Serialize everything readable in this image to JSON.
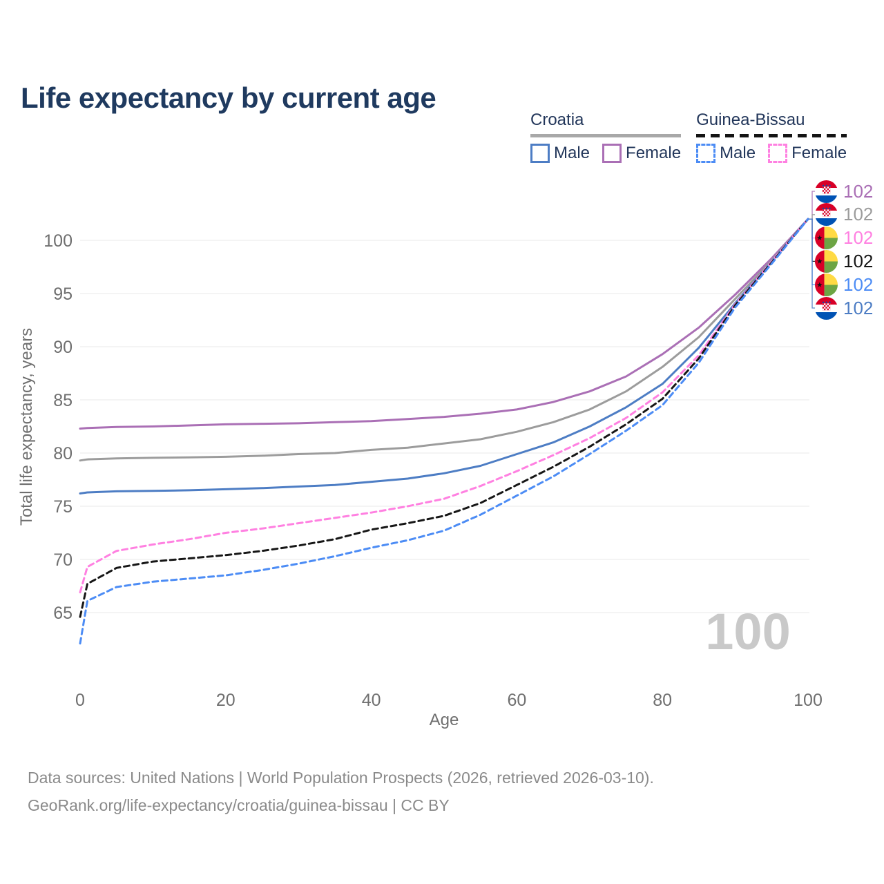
{
  "header": {
    "title": "Life expectancy by current age"
  },
  "legend": {
    "croatia": {
      "label": "Croatia",
      "male_label": "Male",
      "female_label": "Female",
      "male_color": "#4d7dc4",
      "female_color": "#aa6fb5",
      "combined_color": "#9c9c9c",
      "line_style": "solid"
    },
    "guinea_bissau": {
      "label": "Guinea-Bissau",
      "male_label": "Male",
      "female_label": "Female",
      "male_color": "#4c8cf5",
      "female_color": "#ff80e1",
      "combined_color": "#161616",
      "line_style": "dashed"
    }
  },
  "chart_data": {
    "type": "line",
    "title": "Life expectancy by current age",
    "xlabel": "Age",
    "ylabel": "Total life expectancy, years",
    "xlim": [
      0,
      100
    ],
    "ylim": [
      62,
      103
    ],
    "x_ticks": [
      0,
      20,
      40,
      60,
      80,
      100
    ],
    "y_ticks": [
      65,
      70,
      75,
      80,
      85,
      90,
      95,
      100
    ],
    "grid": "horizontal",
    "legend_position": "top-right",
    "x": [
      0,
      1,
      5,
      10,
      15,
      20,
      25,
      30,
      35,
      40,
      45,
      50,
      55,
      60,
      65,
      70,
      75,
      80,
      85,
      90,
      95,
      100
    ],
    "series": [
      {
        "name": "Croatia Female",
        "color": "#aa6fb5",
        "dash": "solid",
        "values": [
          82.3,
          82.35,
          82.45,
          82.5,
          82.6,
          82.7,
          82.75,
          82.8,
          82.9,
          83.0,
          83.2,
          83.4,
          83.7,
          84.1,
          84.8,
          85.8,
          87.2,
          89.3,
          91.8,
          94.9,
          98.3,
          102
        ]
      },
      {
        "name": "Croatia Both sexes",
        "color": "#9c9c9c",
        "dash": "solid",
        "values": [
          79.3,
          79.4,
          79.5,
          79.55,
          79.6,
          79.65,
          79.75,
          79.9,
          80.0,
          80.3,
          80.5,
          80.9,
          81.3,
          82.0,
          82.9,
          84.1,
          85.8,
          88.1,
          90.9,
          94.5,
          98.1,
          102
        ]
      },
      {
        "name": "Croatia Male",
        "color": "#4d7dc4",
        "dash": "solid",
        "values": [
          76.2,
          76.3,
          76.4,
          76.45,
          76.5,
          76.6,
          76.7,
          76.85,
          77.0,
          77.3,
          77.6,
          78.1,
          78.8,
          79.9,
          81.0,
          82.5,
          84.3,
          86.5,
          89.9,
          94.1,
          98.0,
          102
        ]
      },
      {
        "name": "Guinea-Bissau Female",
        "color": "#ff80e1",
        "dash": "dashed",
        "values": [
          66.9,
          69.3,
          70.8,
          71.4,
          71.9,
          72.5,
          72.9,
          73.4,
          73.9,
          74.4,
          75.0,
          75.7,
          76.9,
          78.3,
          79.8,
          81.4,
          83.3,
          85.7,
          89.2,
          94.0,
          98.0,
          102
        ]
      },
      {
        "name": "Guinea-Bissau Both sexes",
        "color": "#161616",
        "dash": "dashed",
        "values": [
          64.6,
          67.7,
          69.2,
          69.8,
          70.1,
          70.4,
          70.8,
          71.3,
          71.9,
          72.8,
          73.4,
          74.1,
          75.3,
          77.0,
          78.7,
          80.6,
          82.7,
          85.1,
          88.9,
          93.9,
          97.9,
          102
        ]
      },
      {
        "name": "Guinea-Bissau Male",
        "color": "#4c8cf5",
        "dash": "dashed",
        "values": [
          62.1,
          66.1,
          67.4,
          67.9,
          68.2,
          68.5,
          69.0,
          69.6,
          70.3,
          71.1,
          71.8,
          72.7,
          74.2,
          76.0,
          77.8,
          79.9,
          82.1,
          84.5,
          88.5,
          93.7,
          97.8,
          102
        ]
      }
    ]
  },
  "end_labels": [
    {
      "flag": "croatia",
      "series": "Croatia Female",
      "value": "102",
      "color": "#aa6fb5"
    },
    {
      "flag": "croatia",
      "series": "Croatia Both sexes",
      "value": "102",
      "color": "#9c9c9c"
    },
    {
      "flag": "guinea-bissau",
      "series": "Guinea-Bissau Female",
      "value": "102",
      "color": "#ff80e1"
    },
    {
      "flag": "guinea-bissau",
      "series": "Guinea-Bissau Both sexes",
      "value": "102",
      "color": "#161616"
    },
    {
      "flag": "guinea-bissau",
      "series": "Guinea-Bissau Male",
      "value": "102",
      "color": "#4c8cf5"
    },
    {
      "flag": "croatia",
      "series": "Croatia Male",
      "value": "102",
      "color": "#4d7dc4"
    }
  ],
  "watermark": "100",
  "footer": {
    "line1": "Data sources: United Nations | World Population Prospects (2026, retrieved 2026-03-10).",
    "line2": "GeoRank.org/life-expectancy/croatia/guinea-bissau | CC BY"
  }
}
